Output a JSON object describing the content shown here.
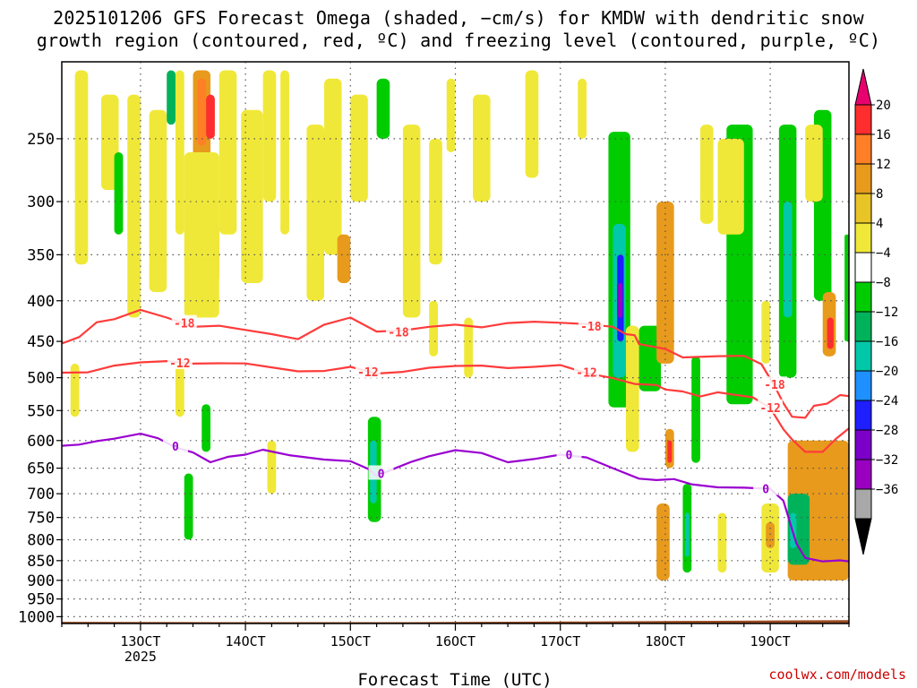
{
  "chart_data": {
    "type": "heatmap",
    "title_line1": "2025101206 GFS Forecast Omega (shaded, −cm/s) for KMDW with dendritic snow",
    "title_line2": "growth region (contoured, red, ºC) and freezing level (contoured, purple, ºC)",
    "xlabel": "Forecast Time (UTC)",
    "ylabel": "",
    "credit": "coolwx.com/models",
    "x_start_date": "2025-10-12T06",
    "x_range_hours": [
      0,
      180
    ],
    "x_ticks": [
      {
        "hour": 18,
        "label": "13OCT"
      },
      {
        "hour": 42,
        "label": "14OCT"
      },
      {
        "hour": 66,
        "label": "15OCT"
      },
      {
        "hour": 90,
        "label": "16OCT"
      },
      {
        "hour": 114,
        "label": "17OCT"
      },
      {
        "hour": 138,
        "label": "18OCT"
      },
      {
        "hour": 162,
        "label": "19OCT"
      }
    ],
    "x_year_label": {
      "hour": 18,
      "label": "2025"
    },
    "y_levels": [
      250,
      300,
      350,
      400,
      450,
      500,
      550,
      600,
      650,
      700,
      750,
      800,
      850,
      900,
      950,
      1000
    ],
    "y_range_hPa": [
      1020,
      200
    ],
    "colorbar": {
      "labels": [
        "20",
        "16",
        "12",
        "8",
        "4",
        "−4",
        "−8",
        "−12",
        "−16",
        "−20",
        "−24",
        "−28",
        "−32",
        "−36"
      ],
      "colors": [
        "#e8006f",
        "#ff2e2e",
        "#ff7f27",
        "#e89a1c",
        "#e8c426",
        "#f0e838",
        "#ffffff",
        "#00cc00",
        "#00b25a",
        "#00c8a8",
        "#1e90ff",
        "#1e1eff",
        "#7b00c8",
        "#9a00c0",
        "#a8a8a8",
        "#000000"
      ]
    },
    "contours": [
      {
        "label": "-18",
        "color": "#ff3b3b",
        "series_name": "dendritic-upper",
        "points": [
          [
            0,
            455
          ],
          [
            4,
            445
          ],
          [
            8,
            425
          ],
          [
            12,
            420
          ],
          [
            18,
            412
          ],
          [
            24,
            420
          ],
          [
            30,
            430
          ],
          [
            36,
            432
          ],
          [
            42,
            436
          ],
          [
            48,
            440
          ],
          [
            54,
            445
          ],
          [
            60,
            430
          ],
          [
            66,
            420
          ],
          [
            72,
            436
          ],
          [
            78,
            438
          ],
          [
            84,
            432
          ],
          [
            90,
            428
          ],
          [
            96,
            430
          ],
          [
            102,
            428
          ],
          [
            108,
            425
          ],
          [
            114,
            425
          ],
          [
            120,
            430
          ],
          [
            126,
            432
          ],
          [
            129,
            440
          ],
          [
            131,
            440
          ],
          [
            132,
            455
          ],
          [
            138,
            460
          ],
          [
            142,
            470
          ],
          [
            150,
            472
          ],
          [
            156,
            470
          ],
          [
            160,
            480
          ],
          [
            163,
            510
          ],
          [
            165,
            540
          ],
          [
            167,
            560
          ],
          [
            170,
            560
          ],
          [
            172,
            545
          ],
          [
            175,
            540
          ],
          [
            178,
            525
          ],
          [
            180,
            525
          ]
        ],
        "labels_at": [
          28,
          77,
          121,
          163
        ]
      },
      {
        "label": "-12",
        "color": "#ff3b3b",
        "series_name": "dendritic-lower",
        "points": [
          [
            0,
            495
          ],
          [
            6,
            493
          ],
          [
            12,
            482
          ],
          [
            18,
            476
          ],
          [
            24,
            478
          ],
          [
            30,
            480
          ],
          [
            36,
            478
          ],
          [
            42,
            482
          ],
          [
            48,
            486
          ],
          [
            54,
            490
          ],
          [
            60,
            488
          ],
          [
            66,
            486
          ],
          [
            72,
            494
          ],
          [
            78,
            490
          ],
          [
            84,
            488
          ],
          [
            90,
            484
          ],
          [
            96,
            482
          ],
          [
            102,
            484
          ],
          [
            108,
            486
          ],
          [
            114,
            482
          ],
          [
            120,
            492
          ],
          [
            126,
            503
          ],
          [
            131,
            510
          ],
          [
            136,
            510
          ],
          [
            138,
            515
          ],
          [
            142,
            522
          ],
          [
            146,
            528
          ],
          [
            150,
            520
          ],
          [
            154,
            528
          ],
          [
            158,
            530
          ],
          [
            162,
            545
          ],
          [
            165,
            578
          ],
          [
            167,
            600
          ],
          [
            170,
            620
          ],
          [
            174,
            618
          ],
          [
            177,
            600
          ],
          [
            180,
            580
          ]
        ],
        "labels_at": [
          27,
          70,
          120,
          162
        ]
      },
      {
        "label": "0",
        "color": "#9a00d0",
        "series_name": "freezing-level",
        "points": [
          [
            0,
            612
          ],
          [
            4,
            608
          ],
          [
            8,
            600
          ],
          [
            12,
            594
          ],
          [
            18,
            590
          ],
          [
            22,
            596
          ],
          [
            26,
            610
          ],
          [
            30,
            624
          ],
          [
            34,
            640
          ],
          [
            38,
            628
          ],
          [
            42,
            622
          ],
          [
            46,
            618
          ],
          [
            52,
            626
          ],
          [
            60,
            632
          ],
          [
            66,
            640
          ],
          [
            70,
            652
          ],
          [
            72,
            664
          ],
          [
            76,
            648
          ],
          [
            80,
            640
          ],
          [
            84,
            628
          ],
          [
            90,
            615
          ],
          [
            96,
            625
          ],
          [
            102,
            640
          ],
          [
            108,
            632
          ],
          [
            114,
            622
          ],
          [
            120,
            632
          ],
          [
            126,
            650
          ],
          [
            132,
            668
          ],
          [
            136,
            676
          ],
          [
            140,
            672
          ],
          [
            144,
            680
          ],
          [
            150,
            684
          ],
          [
            156,
            690
          ],
          [
            162,
            690
          ],
          [
            165,
            712
          ],
          [
            167,
            780
          ],
          [
            168,
            810
          ],
          [
            170,
            842
          ],
          [
            174,
            848
          ],
          [
            178,
            852
          ],
          [
            180,
            852
          ]
        ],
        "labels_at": [
          26,
          73,
          116,
          161
        ]
      }
    ],
    "omega_cells": [
      {
        "h0": 3,
        "h1": 6,
        "p0": 205,
        "p1": 360,
        "v": 5
      },
      {
        "h0": 9,
        "h1": 13,
        "p0": 220,
        "p1": 290,
        "v": 5
      },
      {
        "h0": 12,
        "h1": 14,
        "p0": 260,
        "p1": 330,
        "v": -6
      },
      {
        "h0": 15,
        "h1": 18,
        "p0": 220,
        "p1": 420,
        "v": 5
      },
      {
        "h0": 20,
        "h1": 24,
        "p0": 230,
        "p1": 390,
        "v": 5
      },
      {
        "h0": 24,
        "h1": 26,
        "p0": 205,
        "p1": 240,
        "v": -10
      },
      {
        "h0": 26,
        "h1": 28,
        "p0": 205,
        "p1": 330,
        "v": 5
      },
      {
        "h0": 30,
        "h1": 34,
        "p0": 205,
        "p1": 270,
        "v": 9
      },
      {
        "h0": 31,
        "h1": 33,
        "p0": 210,
        "p1": 255,
        "v": 14
      },
      {
        "h0": 33,
        "h1": 35,
        "p0": 220,
        "p1": 250,
        "v": 18
      },
      {
        "h0": 33,
        "h1": 36,
        "p0": 320,
        "p1": 380,
        "v": 9
      },
      {
        "h0": 28,
        "h1": 36,
        "p0": 260,
        "p1": 420,
        "v": 5
      },
      {
        "h0": 36,
        "h1": 40,
        "p0": 205,
        "p1": 330,
        "v": 5
      },
      {
        "h0": 42,
        "h1": 44,
        "p0": 290,
        "p1": 320,
        "v": -7
      },
      {
        "h0": 41,
        "h1": 46,
        "p0": 230,
        "p1": 380,
        "v": 5
      },
      {
        "h0": 46,
        "h1": 49,
        "p0": 205,
        "p1": 300,
        "v": 5
      },
      {
        "h0": 50,
        "h1": 52,
        "p0": 205,
        "p1": 330,
        "v": 5
      },
      {
        "h0": 56,
        "h1": 60,
        "p0": 240,
        "p1": 400,
        "v": 5
      },
      {
        "h0": 60,
        "h1": 64,
        "p0": 210,
        "p1": 350,
        "v": 5
      },
      {
        "h0": 63,
        "h1": 66,
        "p0": 330,
        "p1": 380,
        "v": 9
      },
      {
        "h0": 66,
        "h1": 70,
        "p0": 220,
        "p1": 300,
        "v": 5
      },
      {
        "h0": 72,
        "h1": 75,
        "p0": 210,
        "p1": 250,
        "v": -6
      },
      {
        "h0": 78,
        "h1": 82,
        "p0": 240,
        "p1": 420,
        "v": 5
      },
      {
        "h0": 84,
        "h1": 87,
        "p0": 250,
        "p1": 360,
        "v": 5
      },
      {
        "h0": 88,
        "h1": 90,
        "p0": 210,
        "p1": 260,
        "v": 5
      },
      {
        "h0": 94,
        "h1": 98,
        "p0": 220,
        "p1": 300,
        "v": 5
      },
      {
        "h0": 106,
        "h1": 109,
        "p0": 205,
        "p1": 280,
        "v": 5
      },
      {
        "h0": 118,
        "h1": 120,
        "p0": 210,
        "p1": 250,
        "v": 5
      },
      {
        "h0": 125,
        "h1": 130,
        "p0": 245,
        "p1": 545,
        "v": -7
      },
      {
        "h0": 126,
        "h1": 129,
        "p0": 320,
        "p1": 500,
        "v": -14
      },
      {
        "h0": 127,
        "h1": 128.5,
        "p0": 350,
        "p1": 450,
        "v": -22
      },
      {
        "h0": 127.2,
        "h1": 128.2,
        "p0": 380,
        "p1": 420,
        "v": -30
      },
      {
        "h0": 129,
        "h1": 132,
        "p0": 430,
        "p1": 620,
        "v": 5
      },
      {
        "h0": 132,
        "h1": 137,
        "p0": 430,
        "p1": 520,
        "v": -7
      },
      {
        "h0": 136,
        "h1": 140,
        "p0": 300,
        "p1": 480,
        "v": 9
      },
      {
        "h0": 138,
        "h1": 140,
        "p0": 580,
        "p1": 650,
        "v": 9
      },
      {
        "h0": 138.5,
        "h1": 139.5,
        "p0": 600,
        "p1": 640,
        "v": 16
      },
      {
        "h0": 144,
        "h1": 146,
        "p0": 470,
        "p1": 640,
        "v": -7
      },
      {
        "h0": 146,
        "h1": 149,
        "p0": 240,
        "p1": 320,
        "v": 5
      },
      {
        "h0": 152,
        "h1": 158,
        "p0": 240,
        "p1": 540,
        "v": -7
      },
      {
        "h0": 150,
        "h1": 156,
        "p0": 250,
        "p1": 330,
        "v": 5
      },
      {
        "h0": 160,
        "h1": 162,
        "p0": 400,
        "p1": 480,
        "v": 5
      },
      {
        "h0": 164,
        "h1": 168,
        "p0": 240,
        "p1": 500,
        "v": -7
      },
      {
        "h0": 165,
        "h1": 167,
        "p0": 300,
        "p1": 420,
        "v": -12
      },
      {
        "h0": 172,
        "h1": 176,
        "p0": 230,
        "p1": 400,
        "v": -7
      },
      {
        "h0": 170,
        "h1": 174,
        "p0": 240,
        "p1": 300,
        "v": 5
      },
      {
        "h0": 174,
        "h1": 177,
        "p0": 390,
        "p1": 470,
        "v": 9
      },
      {
        "h0": 175,
        "h1": 176.5,
        "p0": 420,
        "p1": 460,
        "v": 18
      },
      {
        "h0": 179,
        "h1": 180,
        "p0": 330,
        "p1": 450,
        "v": -7
      },
      {
        "h0": 166,
        "h1": 180,
        "p0": 600,
        "p1": 900,
        "v": 9
      },
      {
        "h0": 166,
        "h1": 171,
        "p0": 700,
        "p1": 860,
        "v": -10
      },
      {
        "h0": 166.5,
        "h1": 168,
        "p0": 740,
        "p1": 820,
        "v": -14
      },
      {
        "h0": 136,
        "h1": 139,
        "p0": 720,
        "p1": 900,
        "v": 9
      },
      {
        "h0": 142,
        "h1": 144,
        "p0": 680,
        "p1": 880,
        "v": -7
      },
      {
        "h0": 142.5,
        "h1": 143.5,
        "p0": 740,
        "p1": 840,
        "v": -12
      },
      {
        "h0": 150,
        "h1": 152,
        "p0": 740,
        "p1": 880,
        "v": 5
      },
      {
        "h0": 160,
        "h1": 164,
        "p0": 720,
        "p1": 880,
        "v": 5
      },
      {
        "h0": 161,
        "h1": 163,
        "p0": 760,
        "p1": 820,
        "v": 9
      },
      {
        "h0": 70,
        "h1": 73,
        "p0": 560,
        "p1": 760,
        "v": -7
      },
      {
        "h0": 70.5,
        "h1": 72,
        "p0": 600,
        "p1": 720,
        "v": -12
      },
      {
        "h0": 28,
        "h1": 30,
        "p0": 660,
        "p1": 800,
        "v": -7
      },
      {
        "h0": 47,
        "h1": 49,
        "p0": 600,
        "p1": 700,
        "v": 5
      },
      {
        "h0": 32,
        "h1": 34,
        "p0": 540,
        "p1": 620,
        "v": -7
      },
      {
        "h0": 2,
        "h1": 4,
        "p0": 480,
        "p1": 560,
        "v": 5
      },
      {
        "h0": 26,
        "h1": 28,
        "p0": 480,
        "p1": 560,
        "v": 5
      },
      {
        "h0": 92,
        "h1": 94,
        "p0": 420,
        "p1": 500,
        "v": 5
      },
      {
        "h0": 84,
        "h1": 86,
        "p0": 400,
        "p1": 470,
        "v": 5
      }
    ]
  }
}
